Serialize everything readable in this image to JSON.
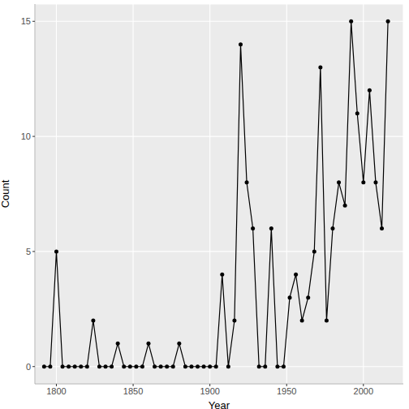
{
  "chart_data": {
    "type": "line",
    "x_label": "Year",
    "y_label": "Count",
    "x": [
      1792,
      1796,
      1800,
      1804,
      1808,
      1812,
      1816,
      1820,
      1824,
      1828,
      1832,
      1836,
      1840,
      1844,
      1848,
      1852,
      1856,
      1860,
      1864,
      1868,
      1872,
      1876,
      1880,
      1884,
      1888,
      1892,
      1896,
      1900,
      1904,
      1908,
      1912,
      1916,
      1920,
      1924,
      1928,
      1932,
      1936,
      1940,
      1944,
      1948,
      1952,
      1956,
      1960,
      1964,
      1968,
      1972,
      1976,
      1980,
      1984,
      1988,
      1992,
      1996,
      2000,
      2004,
      2008,
      2012,
      2016
    ],
    "values": [
      0,
      0,
      5,
      0,
      0,
      0,
      0,
      0,
      2,
      0,
      0,
      0,
      1,
      0,
      0,
      0,
      0,
      1,
      0,
      0,
      0,
      0,
      1,
      0,
      0,
      0,
      0,
      0,
      0,
      4,
      0,
      2,
      14,
      8,
      6,
      0,
      0,
      6,
      0,
      0,
      3,
      4,
      2,
      3,
      5,
      13,
      2,
      6,
      8,
      7,
      15,
      11,
      8,
      12,
      8,
      6,
      15
    ],
    "color": "#000000",
    "marker": "circle",
    "line_style": "solid",
    "xlim": [
      1786,
      2026
    ],
    "xticks": [
      1800,
      1850,
      1900,
      1950,
      2000
    ],
    "ylim": [
      -0.75,
      15.75
    ],
    "yticks": [
      0,
      5,
      10,
      15
    ],
    "grid": true
  }
}
